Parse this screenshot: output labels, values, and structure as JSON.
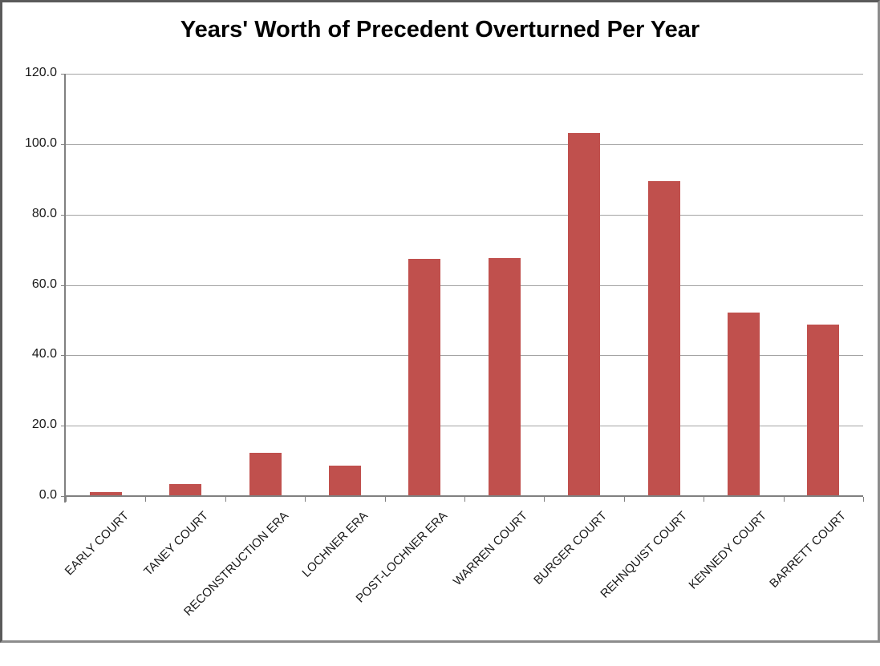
{
  "chart_data": {
    "type": "bar",
    "title": "Years' Worth of Precedent Overturned Per Year",
    "categories": [
      "EARLY COURT",
      "TANEY COURT",
      "RECONSTRUCTION ERA",
      "LOCHNER ERA",
      "POST-LOCHNER ERA",
      "WARREN COURT",
      "BURGER COURT",
      "REHNQUIST COURT",
      "KENNEDY COURT",
      "BARRETT COURT"
    ],
    "values": [
      1.1,
      3.4,
      12.3,
      8.7,
      67.4,
      67.7,
      103.2,
      89.6,
      52.2,
      48.8
    ],
    "xlabel": "",
    "ylabel": "",
    "ylim": [
      0,
      120
    ],
    "ytick_interval": 20,
    "ytick_labels": [
      "0.0",
      "20.0",
      "40.0",
      "60.0",
      "80.0",
      "100.0",
      "120.0"
    ],
    "grid": "horizontal-only",
    "legend_position": "none",
    "colors": {
      "bar_fill": "#C0504D",
      "gridline": "#A3A3A3",
      "axis": "#808080",
      "text": "#1a1a1a",
      "title_text": "#000000",
      "background": "#ffffff",
      "frame_border": "#5a5a5a"
    }
  }
}
